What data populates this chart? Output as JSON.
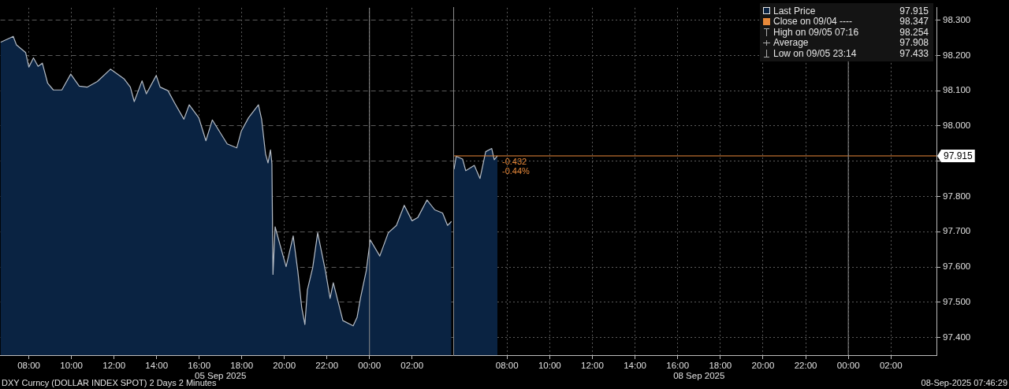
{
  "chart_data": [
    {
      "type": "area",
      "x": [
        "2025-09-05T06:40",
        "2025-09-05T07:16",
        "2025-09-05T07:25",
        "2025-09-05T07:51",
        "2025-09-05T08:00",
        "2025-09-05T08:13",
        "2025-09-05T08:26",
        "2025-09-05T08:38",
        "2025-09-05T08:53",
        "2025-09-05T09:09",
        "2025-09-05T09:33",
        "2025-09-05T09:58",
        "2025-09-05T10:22",
        "2025-09-05T10:44",
        "2025-09-05T11:13",
        "2025-09-05T11:50",
        "2025-09-05T12:28",
        "2025-09-05T12:46",
        "2025-09-05T12:57",
        "2025-09-05T13:19",
        "2025-09-05T13:31",
        "2025-09-05T13:59",
        "2025-09-05T14:10",
        "2025-09-05T14:32",
        "2025-09-05T14:52",
        "2025-09-05T15:17",
        "2025-09-05T15:32",
        "2025-09-05T15:59",
        "2025-09-05T16:19",
        "2025-09-05T16:37",
        "2025-09-05T17:19",
        "2025-09-05T17:46",
        "2025-09-05T17:59",
        "2025-09-05T18:19",
        "2025-09-05T18:47",
        "2025-09-05T18:56",
        "2025-09-05T19:07",
        "2025-09-05T19:14",
        "2025-09-05T19:21",
        "2025-09-05T19:25",
        "2025-09-05T19:28",
        "2025-09-05T19:34",
        "2025-09-05T19:47",
        "2025-09-05T20:05",
        "2025-09-05T20:25",
        "2025-09-05T20:38",
        "2025-09-05T20:49",
        "2025-09-05T20:58",
        "2025-09-05T21:05",
        "2025-09-05T21:20",
        "2025-09-05T21:34",
        "2025-09-05T21:56",
        "2025-09-05T22:09",
        "2025-09-05T22:18",
        "2025-09-05T22:45",
        "2025-09-05T23:14",
        "2025-09-05T23:25",
        "2025-09-05T23:35",
        "2025-09-05T23:51",
        "2025-09-06T00:02",
        "2025-09-06T00:29",
        "2025-09-06T00:53",
        "2025-09-06T01:16",
        "2025-09-06T01:38",
        "2025-09-06T02:00",
        "2025-09-06T02:16",
        "2025-09-06T02:42",
        "2025-09-06T03:04",
        "2025-09-06T03:26",
        "2025-09-06T03:40",
        "2025-09-06T03:51"
      ],
      "series": [
        {
          "color": "#0a2342",
          "values": [
            98.237,
            98.254,
            98.23,
            98.208,
            98.167,
            98.193,
            98.169,
            98.178,
            98.121,
            98.102,
            98.102,
            98.147,
            98.113,
            98.11,
            98.126,
            98.161,
            98.134,
            98.11,
            98.069,
            98.128,
            98.091,
            98.143,
            98.11,
            98.1,
            98.063,
            98.019,
            98.06,
            98.023,
            97.958,
            98.017,
            97.949,
            97.938,
            97.986,
            98.023,
            98.06,
            98.019,
            97.921,
            97.895,
            97.932,
            97.893,
            97.579,
            97.714,
            97.666,
            97.601,
            97.688,
            97.588,
            97.485,
            97.437,
            97.535,
            97.598,
            97.697,
            97.588,
            97.511,
            97.555,
            97.448,
            97.433,
            97.457,
            97.514,
            97.59,
            97.677,
            97.631,
            97.697,
            97.718,
            97.775,
            97.731,
            97.74,
            97.79,
            97.762,
            97.753,
            97.718,
            97.729
          ]
        }
      ],
      "xlim": [
        "2025-09-05T06:40",
        "2025-09-06T03:57"
      ],
      "xticks": [
        {
          "value": "2025-09-05T08:00",
          "label": "08:00"
        },
        {
          "value": "2025-09-05T10:00",
          "label": "10:00"
        },
        {
          "value": "2025-09-05T12:00",
          "label": "12:00"
        },
        {
          "value": "2025-09-05T14:00",
          "label": "14:00"
        },
        {
          "value": "2025-09-05T16:00",
          "label": "16:00"
        },
        {
          "value": "2025-09-05T18:00",
          "label": "18:00"
        },
        {
          "value": "2025-09-05T20:00",
          "label": "20:00"
        },
        {
          "value": "2025-09-05T22:00",
          "label": "22:00"
        },
        {
          "value": "2025-09-06T00:00",
          "label": "00:00"
        },
        {
          "value": "2025-09-06T02:00",
          "label": "02:00"
        }
      ],
      "ylim": [
        97.35,
        98.335
      ],
      "yticks": [
        97.4,
        97.5,
        97.6,
        97.7,
        97.8,
        97.9,
        98.0,
        98.1,
        98.2,
        98.3
      ],
      "tick_labels": "x",
      "grid": true,
      "ref_lines": [
        {
          "axis": "x",
          "value": "2025-09-06T00:00",
          "color": "#8c8c8c"
        }
      ],
      "annotations": [
        "05 Sep 2025",
        "DXY Curncy (DOLLAR INDEX SPOT) 2 Days 2 Minutes"
      ]
    },
    {
      "type": "area",
      "x": [
        "2025-09-08T05:31",
        "2025-09-08T05:37",
        "2025-09-08T05:55",
        "2025-09-08T06:04",
        "2025-09-08T06:28",
        "2025-09-08T06:44",
        "2025-09-08T07:00",
        "2025-09-08T07:17",
        "2025-09-08T07:24",
        "2025-09-08T07:33"
      ],
      "series": [
        {
          "name": "Last Price",
          "color": "#0a2342",
          "values": [
            97.877,
            97.914,
            97.906,
            97.873,
            97.888,
            97.851,
            97.927,
            97.936,
            97.904,
            97.915
          ]
        }
      ],
      "xlim": [
        "2025-09-08T05:31",
        "2025-09-09T04:08"
      ],
      "xticks": [
        {
          "value": "2025-09-08T08:00",
          "label": "08:00"
        },
        {
          "value": "2025-09-08T10:00",
          "label": "10:00"
        },
        {
          "value": "2025-09-08T12:00",
          "label": "12:00"
        },
        {
          "value": "2025-09-08T14:00",
          "label": "14:00"
        },
        {
          "value": "2025-09-08T16:00",
          "label": "16:00"
        },
        {
          "value": "2025-09-08T18:00",
          "label": "18:00"
        },
        {
          "value": "2025-09-08T20:00",
          "label": "20:00"
        },
        {
          "value": "2025-09-08T22:00",
          "label": "22:00"
        },
        {
          "value": "2025-09-09T00:00",
          "label": "00:00"
        },
        {
          "value": "2025-09-09T02:00",
          "label": "02:00"
        }
      ],
      "ylim": [
        97.35,
        98.335
      ],
      "yticks": [
        {
          "value": 97.4,
          "label": "97.400"
        },
        {
          "value": 97.5,
          "label": "97.500"
        },
        {
          "value": 97.6,
          "label": "97.600"
        },
        {
          "value": 97.7,
          "label": "97.700"
        },
        {
          "value": 97.8,
          "label": "97.800"
        },
        {
          "value": 97.9,
          "label": null
        },
        {
          "value": 98.0,
          "label": "98.000"
        },
        {
          "value": 98.1,
          "label": "98.100"
        },
        {
          "value": 98.2,
          "label": "98.200"
        },
        {
          "value": 98.3,
          "label": "98.300"
        }
      ],
      "grid": true,
      "legend": "top right",
      "ref_lines": [
        {
          "axis": "y",
          "value": 97.915,
          "label": "97.915",
          "color": "#e8893a"
        },
        {
          "axis": "x",
          "value": "2025-09-09T00:00",
          "color": "#8c8c8c"
        }
      ],
      "annotations": [
        "-0.432",
        "-0.44%",
        "08 Sep 2025",
        "08-Sep-2025 07:46:29",
        "97.915",
        "Close on 09/04 ---- 98.347",
        "High on 09/05 07:16 98.254",
        "Average 97.908",
        "Low on 09/05 23:14 97.433"
      ]
    }
  ]
}
